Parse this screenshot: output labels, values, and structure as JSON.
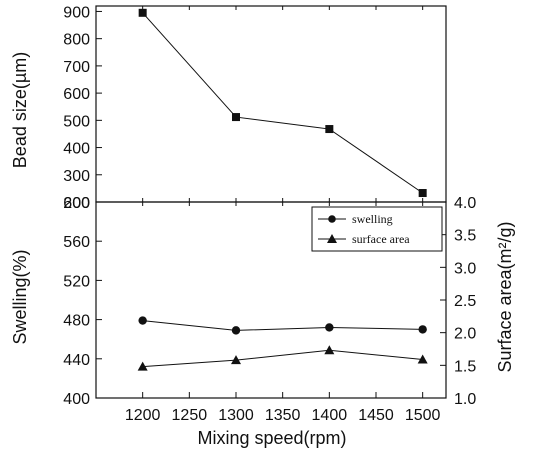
{
  "chart_data": [
    {
      "panel": "top",
      "type": "line",
      "x": [
        1200,
        1300,
        1400,
        1500
      ],
      "series": [
        {
          "values": [
            895,
            512,
            468,
            233
          ],
          "marker": "square"
        }
      ],
      "ylabel": "Bead size(µm)",
      "ylim": [
        200,
        920
      ],
      "ytick_values": [
        200,
        300,
        400,
        500,
        600,
        700,
        800,
        900
      ],
      "ytick_labels": [
        "200",
        "300",
        "400",
        "500",
        "600",
        "700",
        "800",
        "900"
      ],
      "grid": false
    },
    {
      "panel": "bottom",
      "type": "line",
      "x": [
        1200,
        1300,
        1400,
        1500
      ],
      "xlabel": "Mixing speed(rpm)",
      "xlim": [
        1150,
        1525
      ],
      "xtick_values": [
        1200,
        1250,
        1300,
        1350,
        1400,
        1450,
        1500
      ],
      "xtick_labels": [
        "1200",
        "1250",
        "1300",
        "1350",
        "1400",
        "1450",
        "1500"
      ],
      "ylabel_left": "Swelling(%)",
      "ylim_left": [
        400,
        600
      ],
      "ytick_values_left": [
        400,
        440,
        480,
        520,
        560,
        600
      ],
      "ytick_labels_left": [
        "400",
        "440",
        "480",
        "520",
        "560",
        "600"
      ],
      "ylabel_right": "Surface area(m²/g)",
      "ylim_right": [
        1.0,
        4.0
      ],
      "ytick_values_right": [
        1.0,
        1.5,
        2.0,
        2.5,
        3.0,
        3.5,
        4.0
      ],
      "ytick_labels_right": [
        "1.0",
        "1.5",
        "2.0",
        "2.5",
        "3.0",
        "3.5",
        "4.0"
      ],
      "series": [
        {
          "name": "swelling",
          "axis": "left",
          "marker": "circle",
          "values": [
            479,
            469,
            472,
            470
          ]
        },
        {
          "name": "surface area",
          "axis": "right",
          "marker": "triangle",
          "values": [
            1.48,
            1.58,
            1.73,
            1.59
          ]
        }
      ],
      "legend_position": "top-right",
      "grid": false
    }
  ]
}
